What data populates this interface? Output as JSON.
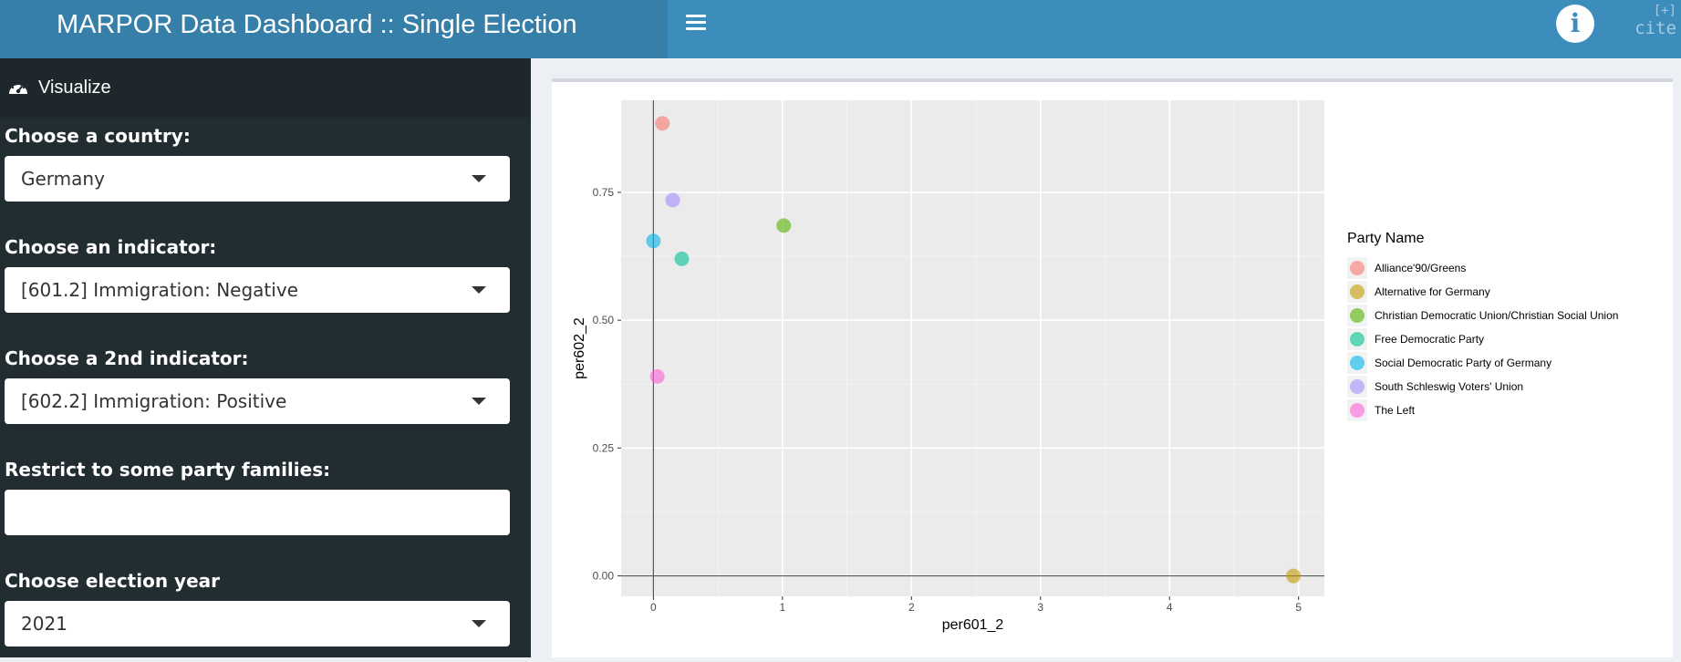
{
  "header": {
    "title": "MARPOR Data Dashboard :: Single Election",
    "cite_plus": "[+]",
    "cite_label": "cite",
    "info_glyph": "i"
  },
  "sidebar": {
    "menu_label": "Visualize",
    "country": {
      "label": "Choose a country:",
      "value": "Germany"
    },
    "indicator": {
      "label": "Choose an indicator:",
      "value": "[601.2] Immigration: Negative"
    },
    "indicator2": {
      "label": "Choose a 2nd indicator:",
      "value": "[602.2] Immigration: Positive"
    },
    "families": {
      "label": "Restrict to some party families:",
      "value": ""
    },
    "year": {
      "label": "Choose election year",
      "value": "2021"
    }
  },
  "icons": {
    "menu": "hamburger-icon",
    "info": "info-icon",
    "gauge": "dashboard-gauge-icon",
    "dropdown": "caret-down-icon"
  },
  "colors": {
    "header": "#3c8dbc",
    "header_logo": "#367fa9",
    "sidebar": "#222d32",
    "panel_bg": "#ebebeb"
  },
  "chart_data": {
    "type": "scatter",
    "xlabel": "per601_2",
    "ylabel": "per602_2",
    "xlim": [
      -0.25,
      5.2
    ],
    "ylim": [
      -0.04,
      0.93
    ],
    "xticks": [
      0,
      1,
      2,
      3,
      4,
      5
    ],
    "xtick_labels": [
      "0",
      "1",
      "2",
      "3",
      "4",
      "5"
    ],
    "yticks": [
      0,
      0.25,
      0.5,
      0.75
    ],
    "ytick_labels": [
      "0.00",
      "0.25",
      "0.50",
      "0.75"
    ],
    "grid": true,
    "reference_lines": {
      "x": 0,
      "y": 0
    },
    "legend": {
      "title": "Party Name",
      "position": "right"
    },
    "series": [
      {
        "name": "Alliance'90/Greens",
        "color": "#F8766D",
        "x": 0.07,
        "y": 0.885
      },
      {
        "name": "Alternative for Germany",
        "color": "#C49A00",
        "x": 4.96,
        "y": 0.0
      },
      {
        "name": "Christian Democratic Union/Christian Social Union",
        "color": "#53B400",
        "x": 1.01,
        "y": 0.685
      },
      {
        "name": "Free Democratic Party",
        "color": "#00C094",
        "x": 0.22,
        "y": 0.62
      },
      {
        "name": "Social Democratic Party of Germany",
        "color": "#00B6EB",
        "x": 0.0,
        "y": 0.655
      },
      {
        "name": "South Schleswig Voters' Union",
        "color": "#A58AFF",
        "x": 0.15,
        "y": 0.735
      },
      {
        "name": "The Left",
        "color": "#FB61D7",
        "x": 0.03,
        "y": 0.39
      }
    ]
  }
}
